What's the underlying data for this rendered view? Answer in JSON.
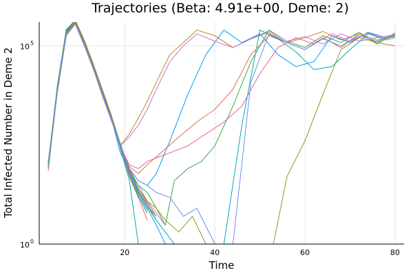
{
  "chart_data": {
    "type": "line",
    "title": "Trajectories (Beta: 4.91e+00, Deme: 2)",
    "xlabel": "Time",
    "ylabel": "Total Infected Number in Deme 2",
    "xlim": [
      1,
      82
    ],
    "ylim_log10": [
      0,
      5.6
    ],
    "y_scale": "log10",
    "x_ticks": [
      20,
      40,
      60,
      80
    ],
    "y_ticks": [
      {
        "value": 1,
        "base": "10",
        "exp": "0"
      },
      {
        "value": 100000,
        "base": "10",
        "exp": "5"
      }
    ],
    "grid": true,
    "legend": "none",
    "palette": [
      "#009AFA",
      "#E36F47",
      "#3EA44E",
      "#C371D2",
      "#AC8E18",
      "#00AAAE",
      "#ED5E93",
      "#C68225",
      "#00A98D",
      "#8E971D",
      "#00A9CD",
      "#9B7FE9",
      "#618DF6"
    ],
    "series": [
      {
        "color": "#009AFA",
        "x": [
          3,
          5,
          7,
          9,
          11,
          13,
          15,
          17,
          19,
          21,
          23,
          25,
          27,
          29
        ],
        "y": [
          100,
          8000,
          200000,
          400000,
          120000,
          30000,
          7000,
          1500,
          300,
          60,
          18,
          8,
          3,
          1
        ]
      },
      {
        "color": "#E36F47",
        "x": [
          3,
          5,
          7,
          9,
          11,
          13,
          15,
          17,
          19,
          21,
          23,
          25
        ],
        "y": [
          80,
          9000,
          250000,
          450000,
          140000,
          35000,
          8000,
          1800,
          280,
          50,
          15,
          4
        ]
      },
      {
        "color": "#3EA44E",
        "x": [
          3,
          5,
          7,
          9,
          11,
          13,
          15,
          17,
          19,
          21,
          23,
          25,
          27
        ],
        "y": [
          120,
          7000,
          220000,
          380000,
          110000,
          28000,
          6000,
          1400,
          350,
          70,
          20,
          9,
          5
        ]
      },
      {
        "color": "#C371D2",
        "x": [
          3,
          5,
          7,
          9,
          11,
          13,
          15,
          17,
          19,
          21,
          23,
          25,
          27,
          29
        ],
        "y": [
          90,
          6500,
          180000,
          350000,
          100000,
          26000,
          5500,
          1300,
          320,
          80,
          30,
          12,
          6,
          3
        ]
      },
      {
        "color": "#00AAAE",
        "x": [
          3,
          5,
          7,
          9,
          11,
          13,
          15,
          17,
          19,
          21,
          23
        ],
        "y": [
          110,
          9500,
          260000,
          420000,
          130000,
          32000,
          7500,
          1600,
          260,
          40,
          1
        ]
      },
      {
        "color": "#ED5E93",
        "x": [
          3,
          5,
          7,
          9,
          11,
          13,
          15,
          17,
          19,
          21,
          23,
          25,
          27
        ],
        "y": [
          70,
          7500,
          210000,
          410000,
          125000,
          31000,
          7200,
          1700,
          330,
          65,
          22,
          10,
          4
        ]
      },
      {
        "color": "#00A98D",
        "x": [
          3,
          5,
          7,
          9,
          11,
          13,
          15,
          17,
          19,
          21,
          23,
          25
        ],
        "y": [
          95,
          8200,
          230000,
          390000,
          115000,
          29000,
          6800,
          1500,
          300,
          55,
          16,
          6
        ]
      },
      {
        "color": "#8E971D",
        "x": [
          3,
          5,
          7,
          9,
          11,
          13,
          15,
          17,
          19,
          21,
          23,
          25,
          27
        ],
        "y": [
          105,
          8800,
          240000,
          430000,
          135000,
          33000,
          7800,
          1750,
          340,
          75,
          25,
          11,
          5
        ]
      },
      {
        "color": "#9B7FE9",
        "x": [
          3,
          5,
          7,
          9,
          11,
          13,
          15,
          17,
          19,
          21,
          23,
          25
        ],
        "y": [
          85,
          6800,
          190000,
          360000,
          105000,
          27000,
          6200,
          1350,
          290,
          60,
          18,
          7
        ]
      },
      {
        "color": "#618DF6",
        "x": [
          3,
          5,
          7,
          9,
          11,
          13,
          15,
          17,
          19,
          21,
          23,
          25,
          27
        ],
        "y": [
          100,
          7800,
          215000,
          400000,
          120000,
          30000,
          7000,
          1550,
          310,
          68,
          21,
          9,
          4
        ]
      },
      {
        "color": "#C68225",
        "x": [
          3,
          5,
          7,
          9,
          11,
          13,
          15,
          17,
          19,
          21,
          23,
          25,
          27,
          30,
          33,
          36,
          40,
          44,
          48,
          52,
          56,
          60,
          64,
          68,
          72,
          76,
          80
        ],
        "y": [
          90,
          7000,
          200000,
          380000,
          110000,
          28000,
          6500,
          1500,
          300,
          600,
          1500,
          4000,
          12000,
          60000,
          120000,
          250000,
          180000,
          90000,
          150000,
          220000,
          120000,
          160000,
          230000,
          140000,
          200000,
          120000,
          100000
        ]
      },
      {
        "color": "#009AFA",
        "x": [
          3,
          5,
          7,
          9,
          11,
          13,
          15,
          17,
          19,
          21,
          23,
          25,
          27,
          30,
          34,
          38,
          42,
          46,
          50,
          54,
          58,
          62,
          66,
          70,
          74,
          78,
          80
        ],
        "y": [
          100,
          7500,
          210000,
          390000,
          115000,
          29000,
          6700,
          1550,
          200,
          80,
          40,
          30,
          60,
          400,
          6000,
          60000,
          250000,
          120000,
          200000,
          60000,
          30000,
          40000,
          180000,
          120000,
          220000,
          160000,
          180000
        ]
      },
      {
        "color": "#E36F47",
        "x": [
          3,
          5,
          7,
          9,
          11,
          13,
          15,
          17,
          19,
          21,
          23,
          25,
          28,
          32,
          36,
          40,
          44,
          48,
          52,
          56,
          60,
          64,
          68,
          72,
          76,
          80
        ],
        "y": [
          80,
          6500,
          190000,
          370000,
          108000,
          27000,
          6300,
          1450,
          280,
          90,
          60,
          100,
          200,
          500,
          1200,
          2500,
          8000,
          60000,
          180000,
          120000,
          80000,
          160000,
          90000,
          200000,
          140000,
          170000
        ]
      },
      {
        "color": "#3EA44E",
        "x": [
          3,
          5,
          7,
          9,
          11,
          13,
          15,
          17,
          19,
          21,
          23,
          25,
          27,
          29,
          31,
          34,
          37,
          40,
          44,
          48,
          52,
          56,
          60,
          64,
          68,
          72,
          76,
          80
        ],
        "y": [
          110,
          8500,
          235000,
          410000,
          125000,
          31000,
          7300,
          1600,
          320,
          70,
          30,
          20,
          8,
          3,
          40,
          80,
          120,
          300,
          3000,
          40000,
          250000,
          130000,
          90000,
          180000,
          120000,
          220000,
          110000,
          210000
        ]
      },
      {
        "color": "#C371D2",
        "x": [
          3,
          5,
          7,
          9,
          11,
          13,
          15,
          17,
          19,
          21,
          23,
          25,
          27,
          30,
          33,
          36,
          40,
          44,
          48,
          52,
          56,
          60,
          64,
          68,
          72,
          76,
          80
        ],
        "y": [
          95,
          7200,
          205000,
          395000,
          118000,
          29500,
          6800,
          1500,
          300,
          500,
          1000,
          2500,
          8000,
          40000,
          100000,
          200000,
          130000,
          90000,
          150000,
          240000,
          130000,
          170000,
          110000,
          200000,
          130000,
          160000,
          190000
        ]
      },
      {
        "color": "#00AAAE",
        "x": [
          3,
          5,
          7,
          9,
          11,
          13,
          15,
          17,
          19,
          21,
          23,
          25,
          27,
          29,
          31,
          33,
          36,
          39,
          42,
          46,
          50,
          54,
          58,
          62,
          66,
          70,
          74,
          78,
          80
        ],
        "y": [
          105,
          8000,
          225000,
          405000,
          122000,
          30500,
          7100,
          1580,
          310,
          72,
          22,
          9,
          4,
          2,
          1,
          1,
          1,
          1,
          1,
          1000,
          250000,
          150000,
          70000,
          25000,
          30000,
          80000,
          200000,
          140000,
          160000
        ]
      },
      {
        "color": "#ED5E93",
        "x": [
          3,
          5,
          7,
          9,
          11,
          13,
          15,
          17,
          19,
          21,
          23,
          25,
          27,
          30,
          34,
          38,
          42,
          46,
          50,
          54,
          58,
          62,
          66,
          70,
          74,
          78,
          80
        ],
        "y": [
          90,
          7100,
          200000,
          385000,
          112000,
          28500,
          6600,
          1480,
          290,
          100,
          80,
          120,
          150,
          200,
          300,
          600,
          1200,
          3000,
          20000,
          90000,
          160000,
          110000,
          200000,
          130000,
          210000,
          150000,
          180000
        ]
      },
      {
        "color": "#8E971D",
        "x": [
          3,
          5,
          7,
          9,
          11,
          13,
          15,
          17,
          19,
          21,
          23,
          25,
          27,
          29,
          32,
          35,
          38,
          41,
          44,
          47,
          50,
          53,
          56,
          60,
          64,
          68,
          72,
          76,
          80
        ],
        "y": [
          100,
          7700,
          212000,
          398000,
          119000,
          30000,
          6900,
          1530,
          305,
          70,
          25,
          12,
          8,
          4,
          2,
          5,
          1,
          1,
          1,
          1,
          1,
          1,
          50,
          400,
          6000,
          80000,
          160000,
          120000,
          190000
        ]
      },
      {
        "color": "#618DF6",
        "x": [
          3,
          5,
          7,
          9,
          11,
          13,
          15,
          17,
          19,
          21,
          23,
          25,
          27,
          30,
          33,
          36,
          40,
          44,
          48,
          52,
          56,
          60,
          64,
          68,
          72,
          76,
          80
        ],
        "y": [
          85,
          6900,
          195000,
          375000,
          110000,
          28000,
          6400,
          1460,
          295,
          80,
          40,
          30,
          20,
          15,
          5,
          8,
          1,
          1,
          12000,
          200000,
          120000,
          80000,
          150000,
          100000,
          180000,
          130000,
          200000
        ]
      }
    ]
  }
}
